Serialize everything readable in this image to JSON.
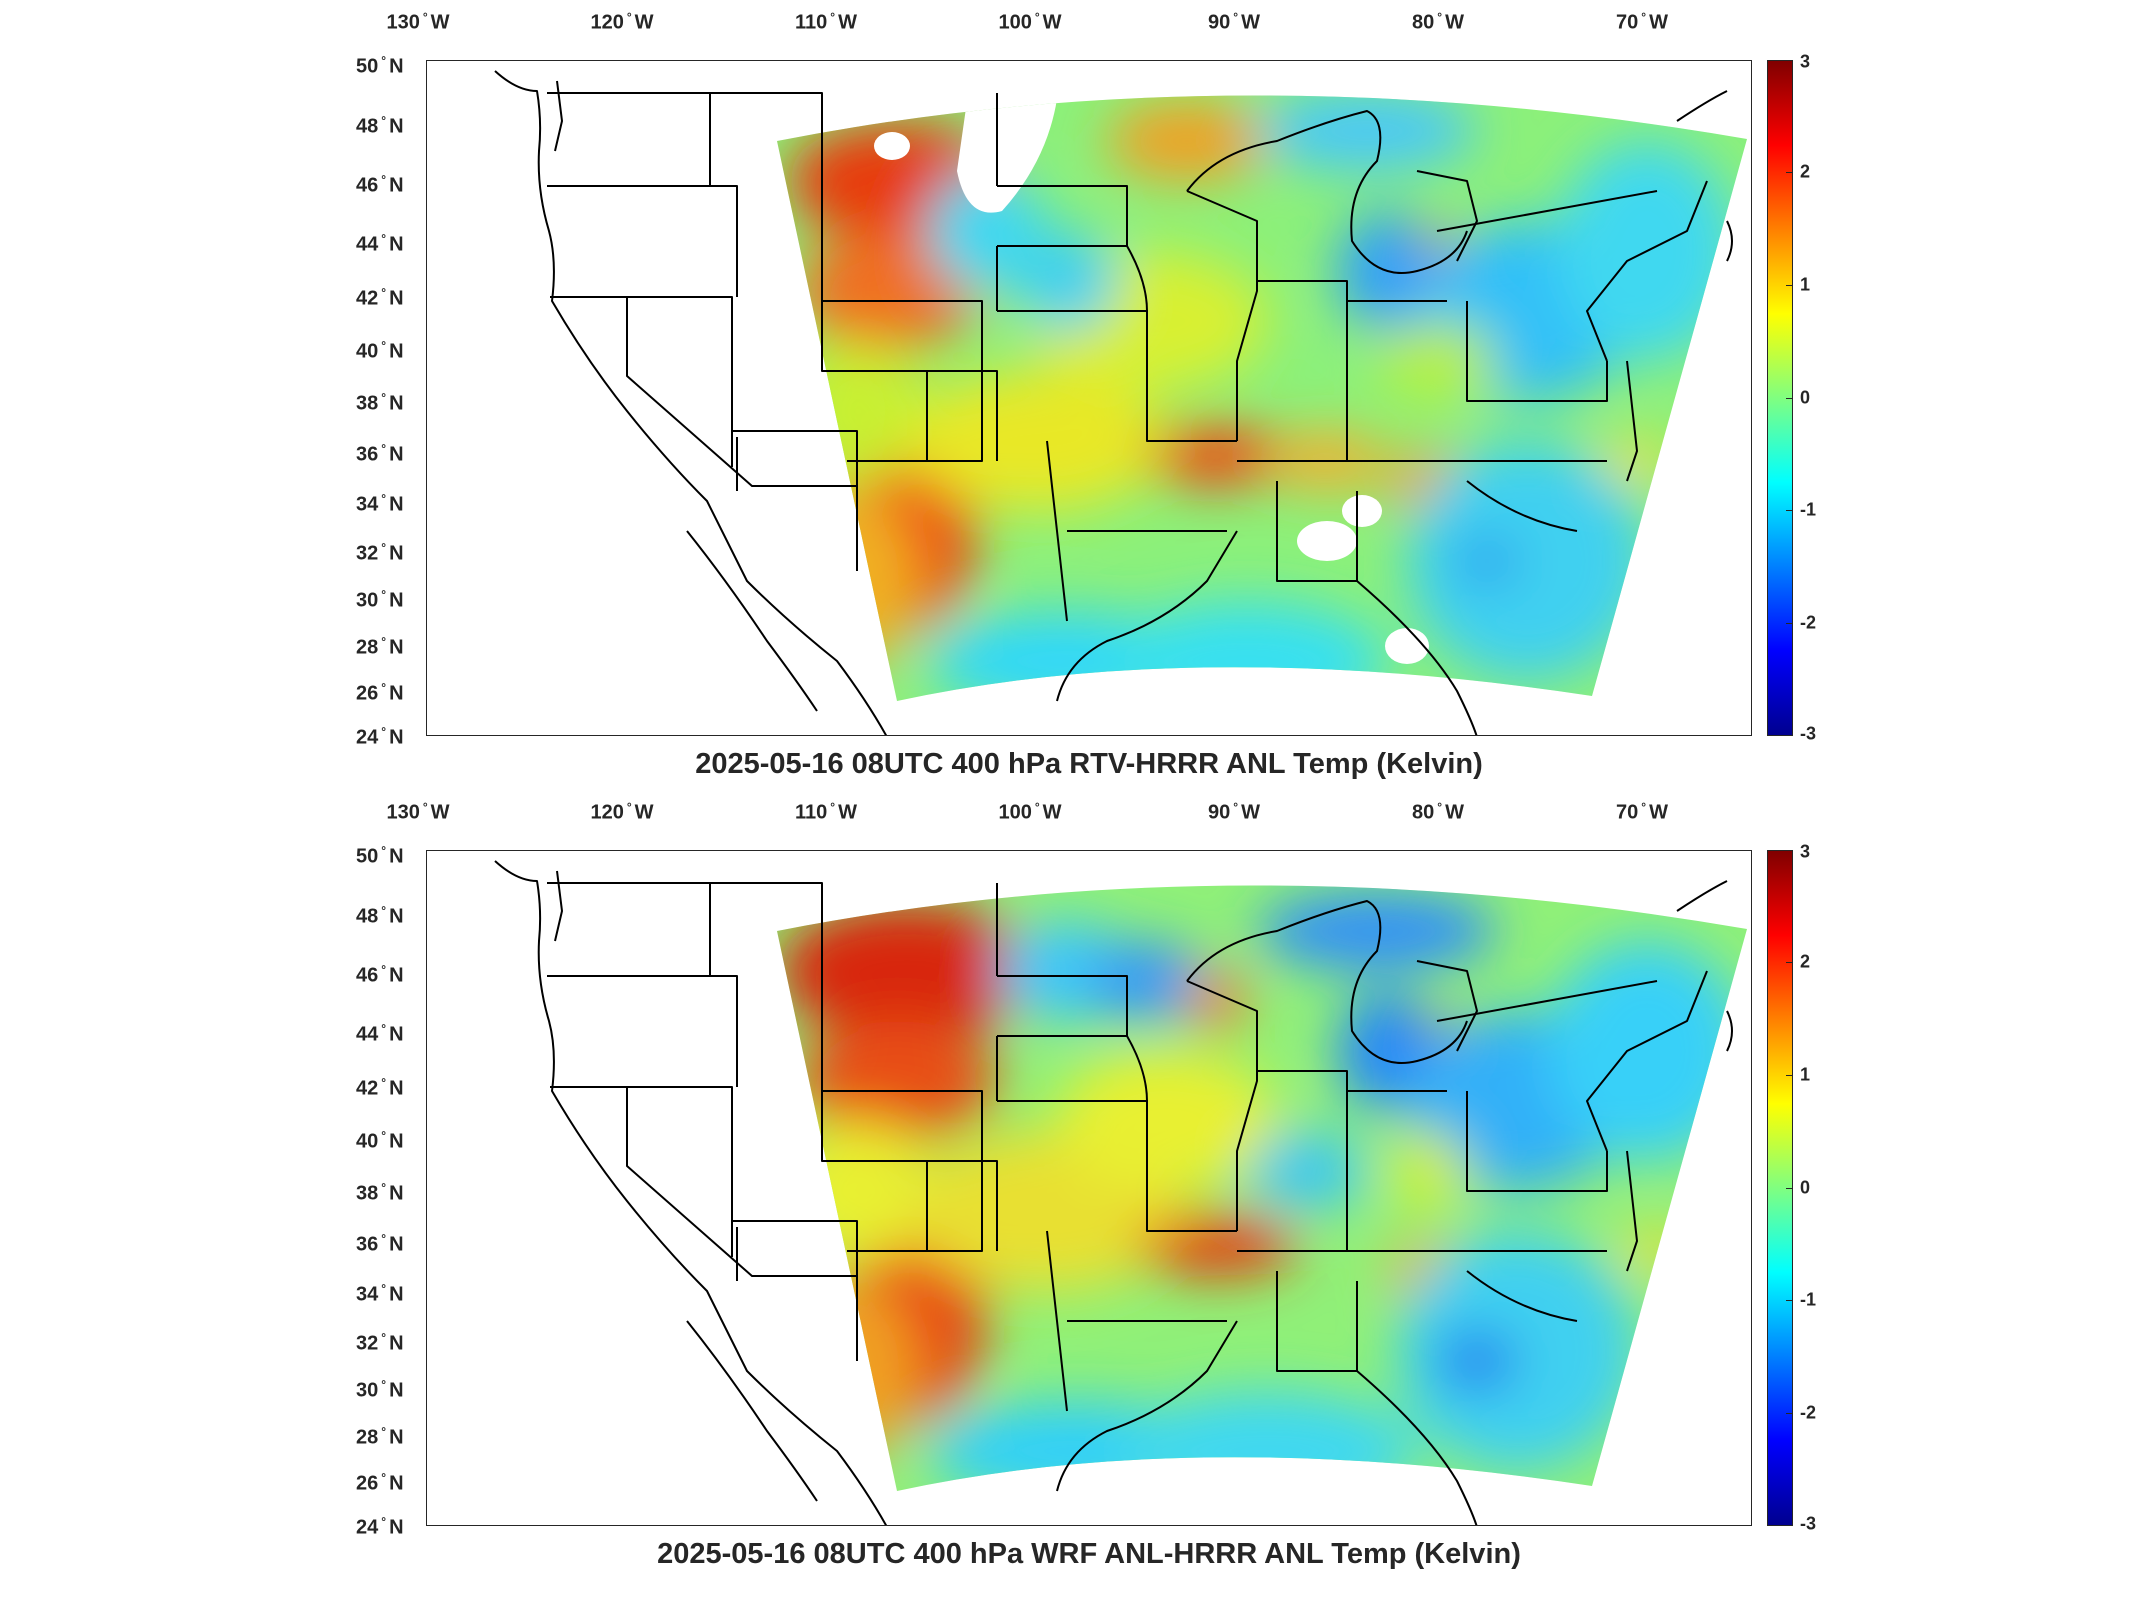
{
  "panels": [
    {
      "title": "2025-05-16 08UTC 400 hPa RTV-HRRR ANL Temp (Kelvin)",
      "colorbar_min": -3,
      "colorbar_max": 3,
      "colorbar_ticks": [
        "3",
        "2",
        "1",
        "0",
        "-1",
        "-2",
        "-3"
      ]
    },
    {
      "title": "2025-05-16 08UTC 400 hPa WRF ANL-HRRR ANL Temp (Kelvin)",
      "colorbar_min": -3,
      "colorbar_max": 3,
      "colorbar_ticks": [
        "3",
        "2",
        "1",
        "0",
        "-1",
        "-2",
        "-3"
      ]
    }
  ],
  "axes": {
    "lon_ticks": [
      {
        "deg": "130",
        "hem": "W"
      },
      {
        "deg": "120",
        "hem": "W"
      },
      {
        "deg": "110",
        "hem": "W"
      },
      {
        "deg": "100",
        "hem": "W"
      },
      {
        "deg": "90",
        "hem": "W"
      },
      {
        "deg": "80",
        "hem": "W"
      },
      {
        "deg": "70",
        "hem": "W"
      }
    ],
    "lat_ticks": [
      {
        "deg": "50",
        "hem": "N"
      },
      {
        "deg": "48",
        "hem": "N"
      },
      {
        "deg": "46",
        "hem": "N"
      },
      {
        "deg": "44",
        "hem": "N"
      },
      {
        "deg": "42",
        "hem": "N"
      },
      {
        "deg": "40",
        "hem": "N"
      },
      {
        "deg": "38",
        "hem": "N"
      },
      {
        "deg": "36",
        "hem": "N"
      },
      {
        "deg": "34",
        "hem": "N"
      },
      {
        "deg": "32",
        "hem": "N"
      },
      {
        "deg": "30",
        "hem": "N"
      },
      {
        "deg": "28",
        "hem": "N"
      },
      {
        "deg": "26",
        "hem": "N"
      },
      {
        "deg": "24",
        "hem": "N"
      }
    ]
  },
  "colormap": {
    "name": "jet",
    "stops": [
      "#800000",
      "#ff0000",
      "#ff8000",
      "#ffff00",
      "#80ff80",
      "#00ffff",
      "#0080ff",
      "#0000ff",
      "#00008f"
    ]
  }
}
